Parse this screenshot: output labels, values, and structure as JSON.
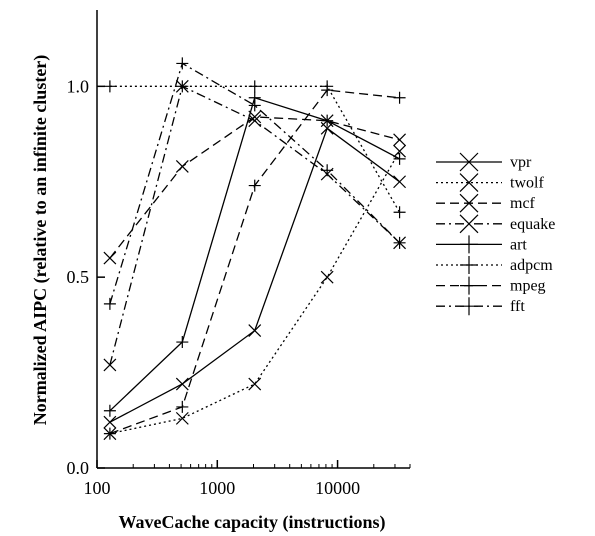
{
  "chart_data": {
    "type": "line",
    "title": "",
    "xlabel": "WaveCache capacity (instructions)",
    "ylabel": "Normalized AIPC (relative to an infinite cluster)",
    "xscale": "log",
    "xlim": [
      100,
      40000
    ],
    "ylim": [
      0.0,
      1.2
    ],
    "xticks": [
      100,
      1000,
      10000
    ],
    "xtick_labels": [
      "100",
      "1000",
      "10000"
    ],
    "yticks": [
      0.0,
      0.5,
      1.0
    ],
    "ytick_labels": [
      "0.0",
      "0.5",
      "1.0"
    ],
    "grid": false,
    "legend_position": "right",
    "x": [
      128,
      512,
      2048,
      8192,
      32768
    ],
    "series": [
      {
        "name": "vpr",
        "marker": "x",
        "dash": "solid",
        "values": [
          0.12,
          0.22,
          0.36,
          0.89,
          0.75
        ]
      },
      {
        "name": "twolf",
        "marker": "x",
        "dash": "dotted",
        "values": [
          0.09,
          0.13,
          0.22,
          0.5,
          0.83
        ]
      },
      {
        "name": "mcf",
        "marker": "x",
        "dash": "dashed",
        "values": [
          0.55,
          0.79,
          0.92,
          0.91,
          0.86
        ]
      },
      {
        "name": "equake",
        "marker": "x",
        "dash": "dashdot",
        "values": [
          0.27,
          1.0,
          0.91,
          0.77,
          0.59
        ]
      },
      {
        "name": "art",
        "marker": "+",
        "dash": "solid",
        "values": [
          0.15,
          0.33,
          0.97,
          0.91,
          0.81
        ]
      },
      {
        "name": "adpcm",
        "marker": "+",
        "dash": "dotted",
        "values": [
          1.0,
          1.0,
          1.0,
          1.0,
          0.67
        ]
      },
      {
        "name": "mpeg",
        "marker": "+",
        "dash": "dashed",
        "values": [
          0.09,
          0.16,
          0.74,
          0.99,
          0.97
        ]
      },
      {
        "name": "fft",
        "marker": "+",
        "dash": "dashdot",
        "values": [
          0.43,
          1.06,
          0.95,
          0.78,
          0.59
        ]
      }
    ]
  }
}
